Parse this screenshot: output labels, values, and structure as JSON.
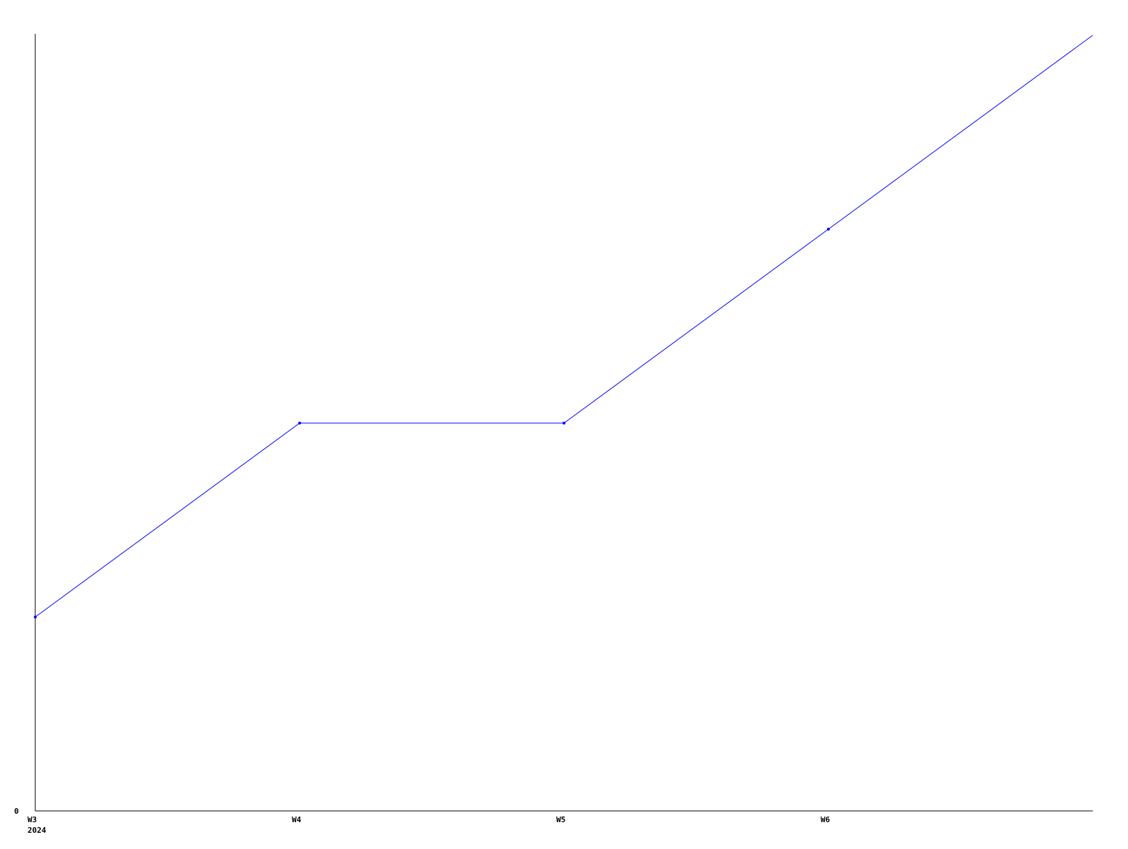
{
  "chart_data": {
    "type": "line",
    "title": "",
    "xlabel": "",
    "ylabel": "",
    "categories": [
      "W3",
      "W4",
      "W5",
      "W6",
      ""
    ],
    "year_label": "2024",
    "y_tick_labels": [
      "0"
    ],
    "series": [
      {
        "values": [
          1,
          2,
          2,
          3,
          4
        ],
        "color": "#0000ff"
      }
    ],
    "ylim": [
      0,
      4
    ],
    "grid": false,
    "legend": "none"
  }
}
